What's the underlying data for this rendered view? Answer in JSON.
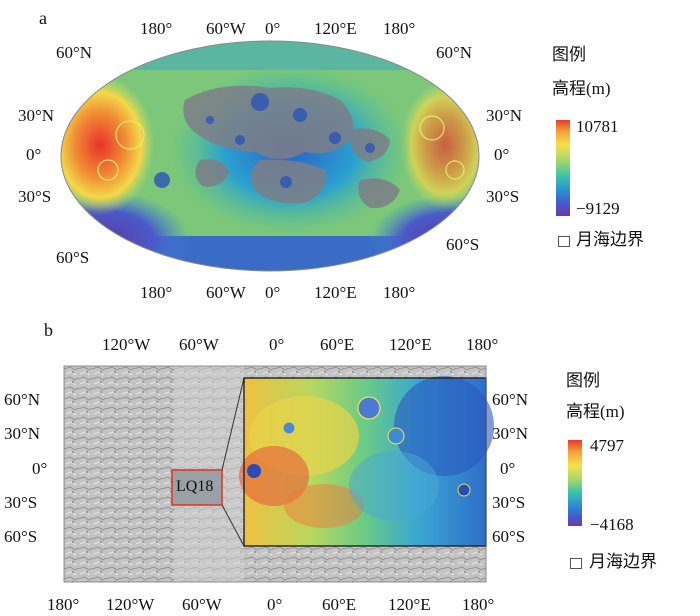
{
  "panel_a": {
    "letter": "a",
    "top_labels": [
      "180°",
      "60°W",
      "0°",
      "120°E",
      "180°"
    ],
    "bottom_labels": [
      "180°",
      "60°W",
      "0°",
      "120°E",
      "180°"
    ],
    "left_labels": [
      "60°N",
      "30°N",
      "0°",
      "30°S",
      "60°S"
    ],
    "right_labels": [
      "60°N",
      "30°N",
      "0°",
      "30°S",
      "60°S"
    ],
    "legend": {
      "title": "图例",
      "subtitle": "高程(m)",
      "max": "10781",
      "min": "−9129",
      "boundary": "月海边界"
    }
  },
  "panel_b": {
    "letter": "b",
    "top_labels": [
      "120°W",
      "60°W",
      "0°",
      "60°E",
      "120°E",
      "180°"
    ],
    "bottom_labels": [
      "180°",
      "120°W",
      "60°W",
      "0°",
      "60°E",
      "120°E",
      "180°"
    ],
    "left_labels": [
      "60°N",
      "30°N",
      "0°",
      "30°S",
      "60°S"
    ],
    "right_labels": [
      "60°N",
      "30°N",
      "0°",
      "30°S",
      "60°S"
    ],
    "region_label": "LQ18",
    "legend": {
      "title": "图例",
      "subtitle": "高程(m)",
      "max": "4797",
      "min": "−4168",
      "boundary": "月海边界"
    }
  }
}
